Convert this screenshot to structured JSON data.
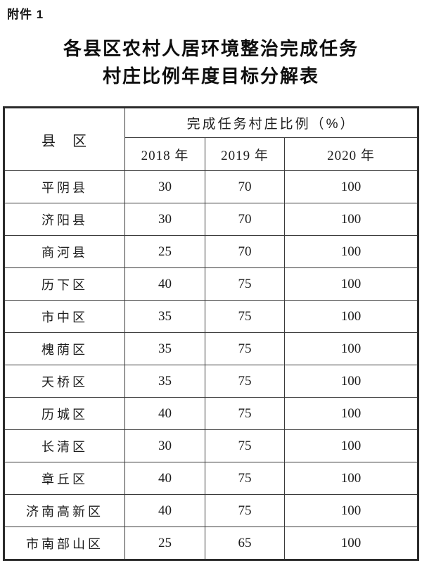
{
  "page": {
    "attachment_label": "附件 1",
    "title_line1": "各县区农村人居环境整治完成任务",
    "title_line2": "村庄比例年度目标分解表"
  },
  "table": {
    "county_header": "县　区",
    "span_header": "完成任务村庄比例（%）",
    "year_headers": [
      "2018 年",
      "2019 年",
      "2020 年"
    ],
    "rows": [
      {
        "county": "平阴县",
        "values": [
          "30",
          "70",
          "100"
        ]
      },
      {
        "county": "济阳县",
        "values": [
          "30",
          "70",
          "100"
        ]
      },
      {
        "county": "商河县",
        "values": [
          "25",
          "70",
          "100"
        ]
      },
      {
        "county": "历下区",
        "values": [
          "40",
          "75",
          "100"
        ]
      },
      {
        "county": "市中区",
        "values": [
          "35",
          "75",
          "100"
        ]
      },
      {
        "county": "槐荫区",
        "values": [
          "35",
          "75",
          "100"
        ]
      },
      {
        "county": "天桥区",
        "values": [
          "35",
          "75",
          "100"
        ]
      },
      {
        "county": "历城区",
        "values": [
          "40",
          "75",
          "100"
        ]
      },
      {
        "county": "长清区",
        "values": [
          "30",
          "75",
          "100"
        ]
      },
      {
        "county": "章丘区",
        "values": [
          "40",
          "75",
          "100"
        ]
      },
      {
        "county": "济南高新区",
        "values": [
          "40",
          "75",
          "100"
        ]
      },
      {
        "county": "市南部山区",
        "values": [
          "25",
          "65",
          "100"
        ]
      }
    ]
  },
  "colors": {
    "text": "#1c1c1c",
    "border_outer": "#2b2b2b",
    "border_inner": "#3a3a3a",
    "background": "#ffffff"
  }
}
